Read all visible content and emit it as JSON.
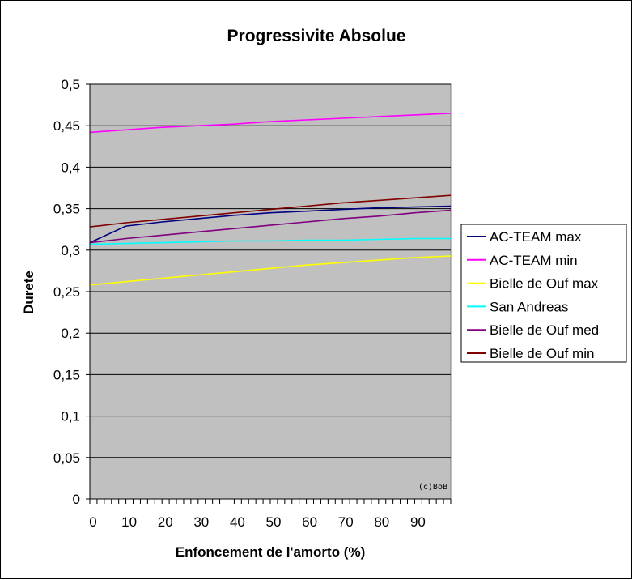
{
  "chart_data": {
    "type": "line",
    "title": "Progressivite Absolue",
    "xlabel": "Enfoncement de l'amorto (%)",
    "ylabel": "Durete",
    "xlim": [
      0,
      100
    ],
    "ylim": [
      0,
      0.5
    ],
    "x_ticks": [
      0,
      10,
      20,
      30,
      40,
      50,
      60,
      70,
      80,
      90
    ],
    "x_tick_labels": [
      "0",
      "10",
      "20",
      "30",
      "40",
      "50",
      "60",
      "70",
      "80",
      "90"
    ],
    "y_ticks": [
      0,
      0.05,
      0.1,
      0.15,
      0.2,
      0.25,
      0.3,
      0.35,
      0.4,
      0.45,
      0.5
    ],
    "y_tick_labels": [
      "0",
      "0,05",
      "0,1",
      "0,15",
      "0,2",
      "0,25",
      "0,3",
      "0,35",
      "0,4",
      "0,45",
      "0,5"
    ],
    "grid": true,
    "plot_background": "#c0c0c0",
    "legend_position": "right",
    "annotation": "(c)BoB",
    "x": [
      0,
      10,
      20,
      30,
      40,
      50,
      60,
      70,
      80,
      90,
      100
    ],
    "series": [
      {
        "name": "AC-TEAM max",
        "color": "#000080",
        "values": [
          0.309,
          0.329,
          0.334,
          0.338,
          0.342,
          0.345,
          0.347,
          0.349,
          0.351,
          0.352,
          0.353
        ]
      },
      {
        "name": "AC-TEAM min",
        "color": "#ff00ff",
        "values": [
          0.442,
          0.445,
          0.448,
          0.45,
          0.452,
          0.455,
          0.457,
          0.459,
          0.461,
          0.463,
          0.465
        ]
      },
      {
        "name": "Bielle de Ouf max",
        "color": "#ffff00",
        "values": [
          0.258,
          0.262,
          0.266,
          0.27,
          0.274,
          0.278,
          0.282,
          0.285,
          0.288,
          0.291,
          0.293
        ]
      },
      {
        "name": "San Andreas",
        "color": "#00ffff",
        "values": [
          0.307,
          0.308,
          0.309,
          0.31,
          0.311,
          0.311,
          0.312,
          0.312,
          0.313,
          0.314,
          0.314
        ]
      },
      {
        "name": "Bielle de Ouf med",
        "color": "#800080",
        "values": [
          0.309,
          0.314,
          0.318,
          0.322,
          0.326,
          0.33,
          0.334,
          0.338,
          0.341,
          0.345,
          0.348
        ]
      },
      {
        "name": "Bielle de Ouf min",
        "color": "#800000",
        "values": [
          0.328,
          0.333,
          0.337,
          0.341,
          0.345,
          0.349,
          0.353,
          0.357,
          0.36,
          0.363,
          0.366
        ]
      }
    ]
  }
}
